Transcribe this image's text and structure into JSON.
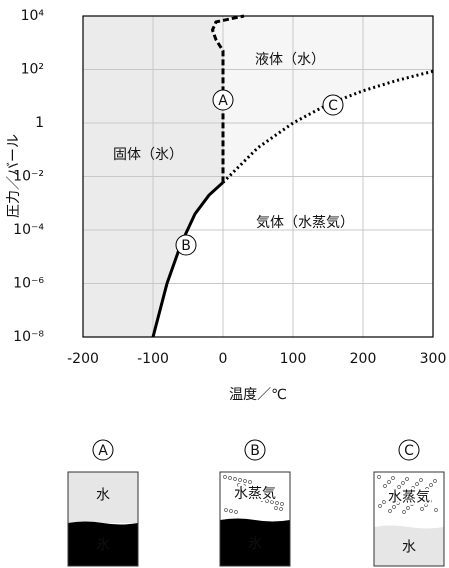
{
  "chart_data": {
    "type": "line",
    "x_label": "温度／℃",
    "y_label": "圧力／バール",
    "xlim": [
      -200,
      300
    ],
    "xticks": [
      -200,
      -100,
      0,
      100,
      200,
      300
    ],
    "ylim": [
      1e-08,
      10000
    ],
    "yticks": [
      {
        "value": 1e-08,
        "label": "10⁻⁸"
      },
      {
        "value": 1e-06,
        "label": "10⁻⁶"
      },
      {
        "value": 0.0001,
        "label": "10⁻⁴"
      },
      {
        "value": 0.01,
        "label": "10⁻²"
      },
      1,
      {
        "value": 100,
        "label": "10²"
      },
      {
        "value": 10000,
        "label": "10⁴"
      }
    ],
    "y_scale": "log",
    "grid": true,
    "series": [
      {
        "color": "#000000",
        "dash": "solid",
        "x": [
          -100,
          -80,
          -60,
          -40,
          -20,
          0
        ],
        "values": [
          1e-08,
          1e-06,
          3e-05,
          0.0004,
          0.002,
          0.006
        ]
      },
      {
        "color": "#000000",
        "dash": "dashed",
        "x": [
          0,
          0,
          -10,
          -15,
          -10,
          30
        ],
        "values": [
          0.006,
          500,
          1300,
          3000,
          6000,
          10000
        ]
      },
      {
        "color": "#000000",
        "dash": "dotted",
        "x": [
          0,
          50,
          100,
          150,
          200,
          250,
          300
        ],
        "values": [
          0.006,
          0.12,
          1,
          5,
          16,
          40,
          86
        ]
      }
    ],
    "regions": [
      "固体（氷）",
      "液体（水）",
      "気体（水蒸気）"
    ],
    "points": [
      "A",
      "B",
      "C"
    ]
  },
  "containers": [
    {
      "label": "A",
      "top": "水",
      "bottom": "氷"
    },
    {
      "label": "B",
      "top": "水蒸気",
      "bottom": "氷"
    },
    {
      "label": "C",
      "top": "水蒸気",
      "bottom": "水"
    }
  ]
}
